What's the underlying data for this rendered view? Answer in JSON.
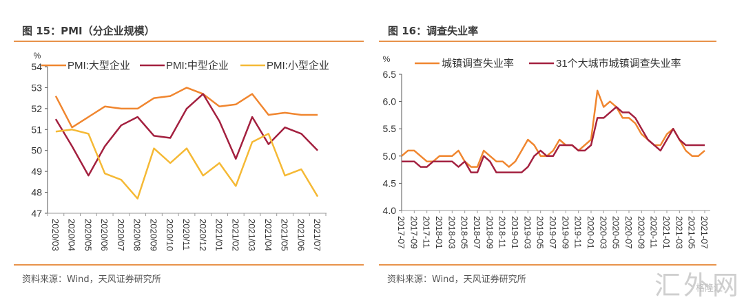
{
  "colors": {
    "accent_rule": "#e8924a",
    "large": "#f0862f",
    "medium": "#a3203f",
    "small": "#f5b935",
    "urban": "#f0862f",
    "city31": "#a3203f"
  },
  "panel1": {
    "title": "图 15：PMI（分企业规模）",
    "source": "资料来源：Wind，天风证券研究所"
  },
  "panel2": {
    "title": "图 16：调查失业率",
    "source": "资料来源：Wind，天风证券研究所"
  },
  "watermark": {
    "text": "汇外网",
    "sub": "格隆汇"
  },
  "chart_data": [
    {
      "type": "line",
      "title": "PMI（分企业规模）",
      "ylabel": "%",
      "ylim": [
        47,
        54
      ],
      "yticks": [
        47,
        48,
        49,
        50,
        51,
        52,
        53,
        54
      ],
      "legend": "top",
      "categories": [
        "2020/03",
        "2020/04",
        "2020/05",
        "2020/06",
        "2020/07",
        "2020/08",
        "2020/09",
        "2020/10",
        "2020/11",
        "2020/12",
        "2021/01",
        "2021/02",
        "2021/03",
        "2021/04",
        "2021/05",
        "2021/06",
        "2021/07"
      ],
      "series": [
        {
          "name": "PMI:大型企业",
          "color_key": "large",
          "values": [
            52.6,
            51.1,
            51.6,
            52.1,
            52.0,
            52.0,
            52.5,
            52.6,
            53.0,
            52.7,
            52.1,
            52.2,
            52.7,
            51.7,
            51.8,
            51.7,
            51.7
          ]
        },
        {
          "name": "PMI:中型企业",
          "color_key": "medium",
          "values": [
            51.5,
            50.2,
            48.8,
            50.2,
            51.2,
            51.6,
            50.7,
            50.6,
            52.0,
            52.7,
            51.4,
            49.6,
            51.6,
            50.3,
            51.1,
            50.8,
            50.0
          ]
        },
        {
          "name": "PMI:小型企业",
          "color_key": "small",
          "values": [
            50.9,
            51.0,
            50.8,
            48.9,
            48.6,
            47.7,
            50.1,
            49.4,
            50.1,
            48.8,
            49.4,
            48.3,
            50.4,
            50.8,
            48.8,
            49.1,
            47.8
          ]
        }
      ]
    },
    {
      "type": "line",
      "title": "调查失业率",
      "ylabel": "%",
      "ylim": [
        4.0,
        6.5
      ],
      "yticks": [
        "4.0",
        "4.5",
        "5.0",
        "5.5",
        "6.0",
        "6.5"
      ],
      "legend": "top",
      "tick_labels": [
        "2017-07",
        "2017-09",
        "2017-11",
        "2018-01",
        "2018-03",
        "2018-05",
        "2018-07",
        "2018-09",
        "2018-11",
        "2019-01",
        "2019-03",
        "2019-05",
        "2019-07",
        "2019-09",
        "2019-11",
        "2020-01",
        "2020-03",
        "2020-05",
        "2020-07",
        "2020-09",
        "2020-11",
        "2021-01",
        "2021-03",
        "2021-05",
        "2021-07"
      ],
      "x": [
        "2017-07",
        "2017-08",
        "2017-09",
        "2017-10",
        "2017-11",
        "2017-12",
        "2018-01",
        "2018-02",
        "2018-03",
        "2018-04",
        "2018-05",
        "2018-06",
        "2018-07",
        "2018-08",
        "2018-09",
        "2018-10",
        "2018-11",
        "2018-12",
        "2019-01",
        "2019-02",
        "2019-03",
        "2019-04",
        "2019-05",
        "2019-06",
        "2019-07",
        "2019-08",
        "2019-09",
        "2019-10",
        "2019-11",
        "2019-12",
        "2020-01",
        "2020-02",
        "2020-03",
        "2020-04",
        "2020-05",
        "2020-06",
        "2020-07",
        "2020-08",
        "2020-09",
        "2020-10",
        "2020-11",
        "2020-12",
        "2021-01",
        "2021-02",
        "2021-03",
        "2021-04",
        "2021-05",
        "2021-06",
        "2021-07"
      ],
      "series": [
        {
          "name": "城镇调查失业率",
          "color_key": "urban",
          "values": [
            5.0,
            5.1,
            5.1,
            5.0,
            4.9,
            4.9,
            5.0,
            5.0,
            5.0,
            5.1,
            4.9,
            4.8,
            4.8,
            5.1,
            5.0,
            4.9,
            4.9,
            4.8,
            4.9,
            5.1,
            5.3,
            5.2,
            5.0,
            5.0,
            5.1,
            5.3,
            5.2,
            5.2,
            5.1,
            5.2,
            5.3,
            6.2,
            5.9,
            6.0,
            5.9,
            5.7,
            5.7,
            5.6,
            5.4,
            5.3,
            5.2,
            5.2,
            5.4,
            5.5,
            5.3,
            5.1,
            5.0,
            5.0,
            5.1
          ]
        },
        {
          "name": "31个大城市城镇调查失业率",
          "color_key": "city31",
          "values": [
            4.9,
            4.9,
            4.9,
            4.8,
            4.8,
            4.9,
            4.9,
            4.9,
            4.9,
            4.8,
            4.9,
            4.7,
            4.7,
            5.0,
            4.9,
            4.7,
            4.7,
            4.7,
            4.7,
            4.7,
            4.8,
            5.0,
            5.1,
            5.0,
            5.0,
            5.2,
            5.2,
            5.2,
            5.1,
            5.1,
            5.2,
            5.7,
            5.7,
            5.8,
            5.9,
            5.8,
            5.8,
            5.7,
            5.5,
            5.3,
            5.2,
            5.1,
            5.3,
            5.5,
            5.3,
            5.2,
            5.2,
            5.2,
            5.2
          ]
        }
      ]
    }
  ]
}
